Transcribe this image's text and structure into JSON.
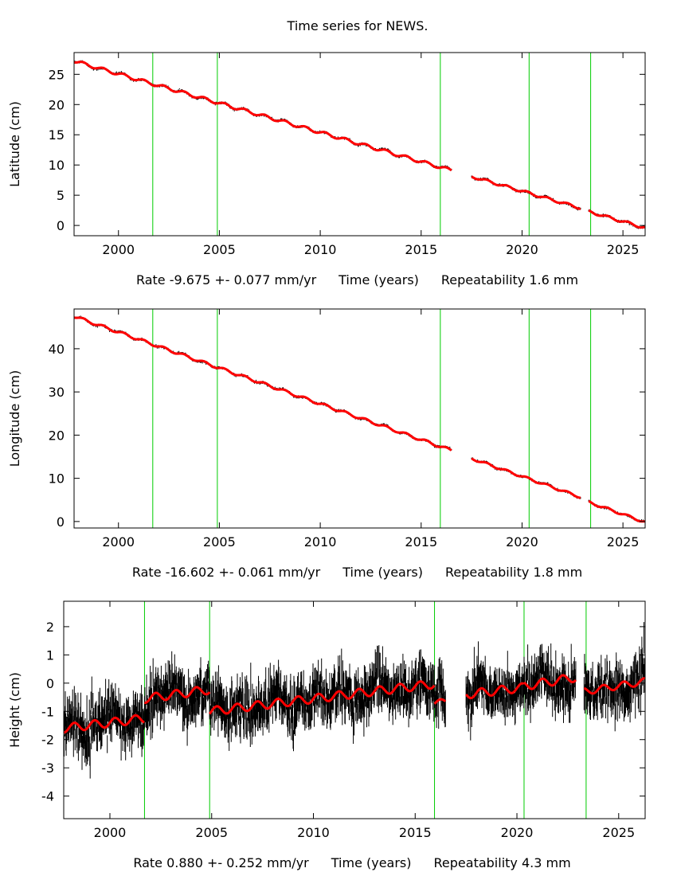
{
  "title": "Time series for NEWS.",
  "colors": {
    "data": "#000000",
    "fit": "#ff0000",
    "breaks": "#00cc00",
    "axis": "#000000"
  },
  "chart_data": [
    {
      "type": "scatter",
      "id": "latitude",
      "ylabel": "Latitude (cm)",
      "xlabel": "Time (years)",
      "rate_text": "Rate -9.675 +- 0.077 mm/yr",
      "repeatability_text": "Repeatability 1.6 mm",
      "xlim": [
        1997.8,
        2026.1
      ],
      "ylim": [
        -1.7,
        28.6
      ],
      "xticks": [
        2000,
        2005,
        2010,
        2015,
        2020,
        2025
      ],
      "yticks": [
        0,
        5,
        10,
        15,
        20,
        25
      ],
      "breaks": [
        2001.7,
        2004.9,
        2015.95,
        2020.35,
        2023.4
      ],
      "noise_sigma": 0.15,
      "fit_segments": [
        {
          "x0": 1997.8,
          "x1": 2016.5,
          "y0": 27.2,
          "rate": -0.9675,
          "amp": 0.25
        },
        {
          "x0": 2017.5,
          "x1": 2022.9,
          "y0": 8.1,
          "rate": -0.9675,
          "amp": 0.2
        },
        {
          "x0": 2023.3,
          "x1": 2026.1,
          "y0": 2.3,
          "rate": -0.9675,
          "amp": 0.2
        }
      ]
    },
    {
      "type": "scatter",
      "id": "longitude",
      "ylabel": "Longitude (cm)",
      "xlabel": "Time (years)",
      "rate_text": "Rate -16.602 +- 0.061 mm/yr",
      "repeatability_text": "Repeatability 1.8 mm",
      "xlim": [
        1997.8,
        2026.1
      ],
      "ylim": [
        -1.5,
        49.2
      ],
      "xticks": [
        2000,
        2005,
        2010,
        2015,
        2020,
        2025
      ],
      "yticks": [
        0,
        10,
        20,
        30,
        40
      ],
      "breaks": [
        2001.7,
        2004.9,
        2015.95,
        2020.35,
        2023.4
      ],
      "noise_sigma": 0.2,
      "fit_segments": [
        {
          "x0": 1997.8,
          "x1": 2016.5,
          "y0": 47.5,
          "rate": -1.6602,
          "amp": 0.3
        },
        {
          "x0": 2017.5,
          "x1": 2022.9,
          "y0": 14.6,
          "rate": -1.6602,
          "amp": 0.25
        },
        {
          "x0": 2023.3,
          "x1": 2026.1,
          "y0": 4.5,
          "rate": -1.6602,
          "amp": 0.25
        }
      ]
    },
    {
      "type": "scatter",
      "id": "height",
      "ylabel": "Height (cm)",
      "xlabel": "Time (years)",
      "rate_text": "Rate 0.880 +- 0.252 mm/yr",
      "repeatability_text": "Repeatability 4.3 mm",
      "xlim": [
        1997.73,
        2026.3
      ],
      "ylim": [
        -4.8,
        2.9
      ],
      "xticks": [
        2000,
        2005,
        2010,
        2015,
        2020,
        2025
      ],
      "yticks": [
        -4,
        -3,
        -2,
        -1,
        0,
        1,
        2
      ],
      "breaks": [
        2001.7,
        2004.9,
        2015.95,
        2020.35,
        2023.4
      ],
      "noise_sigma": 0.6,
      "fit_segments": [
        {
          "x0": 1997.73,
          "x1": 2001.7,
          "y0": -1.6,
          "rate": 0.088,
          "amp": 0.15
        },
        {
          "x0": 2001.7,
          "x1": 2004.9,
          "y0": -0.55,
          "rate": 0.1,
          "amp": 0.15
        },
        {
          "x0": 2004.9,
          "x1": 2015.95,
          "y0": -1.0,
          "rate": 0.088,
          "amp": 0.15
        },
        {
          "x0": 2015.95,
          "x1": 2016.5,
          "y0": -0.7,
          "rate": 0.088,
          "amp": 0.1
        },
        {
          "x0": 2017.5,
          "x1": 2020.35,
          "y0": -0.4,
          "rate": 0.088,
          "amp": 0.15
        },
        {
          "x0": 2020.35,
          "x1": 2022.9,
          "y0": -0.1,
          "rate": 0.12,
          "amp": 0.15
        },
        {
          "x0": 2023.3,
          "x1": 2026.3,
          "y0": -0.3,
          "rate": 0.12,
          "amp": 0.12
        }
      ]
    }
  ]
}
